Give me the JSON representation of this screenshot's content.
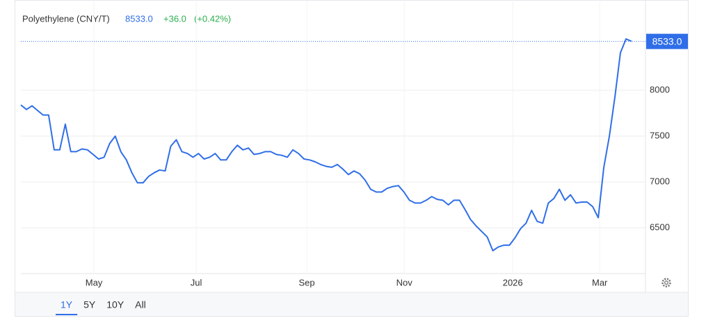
{
  "chart_data": {
    "type": "line",
    "title": "Polyethylene (CNY/T)",
    "last": {
      "value": 8533,
      "label": "8533.0"
    },
    "change": {
      "value": 36,
      "label": "+36.0"
    },
    "change_pct": {
      "value": 0.42,
      "label": "(+0.42%)"
    },
    "series": [
      {
        "name": "Polyethylene",
        "color": "#2f6ee8",
        "values": [
          7840,
          7790,
          7830,
          7780,
          7730,
          7730,
          7350,
          7350,
          7630,
          7330,
          7330,
          7360,
          7350,
          7300,
          7250,
          7270,
          7420,
          7500,
          7330,
          7240,
          7100,
          6990,
          6990,
          7060,
          7100,
          7130,
          7120,
          7390,
          7460,
          7330,
          7310,
          7270,
          7310,
          7250,
          7270,
          7310,
          7240,
          7240,
          7330,
          7400,
          7350,
          7370,
          7300,
          7310,
          7330,
          7330,
          7300,
          7290,
          7270,
          7350,
          7310,
          7250,
          7240,
          7220,
          7190,
          7170,
          7160,
          7190,
          7140,
          7080,
          7120,
          7090,
          7020,
          6920,
          6890,
          6890,
          6930,
          6950,
          6960,
          6890,
          6800,
          6770,
          6770,
          6800,
          6840,
          6810,
          6800,
          6750,
          6800,
          6800,
          6700,
          6590,
          6520,
          6460,
          6400,
          6250,
          6290,
          6310,
          6310,
          6390,
          6490,
          6550,
          6690,
          6570,
          6550,
          6770,
          6820,
          6920,
          6800,
          6860,
          6770,
          6780,
          6780,
          6730,
          6610,
          7160,
          7500,
          7930,
          8410,
          8560,
          8533
        ]
      }
    ],
    "ylim": [
      6000,
      8950
    ],
    "yticks": [
      6500,
      7000,
      7500,
      8000
    ],
    "xticks": [
      {
        "value": 13.16,
        "label": "May"
      },
      {
        "value": 31.58,
        "label": "Jul"
      },
      {
        "value": 51.5,
        "label": "Sep"
      },
      {
        "value": 69.05,
        "label": "Nov"
      },
      {
        "value": 88.6,
        "label": "2026"
      },
      {
        "value": 104.26,
        "label": "Mar"
      }
    ],
    "grid": true,
    "ranges": [
      "1Y",
      "5Y",
      "10Y",
      "All"
    ],
    "active_range": 0
  }
}
